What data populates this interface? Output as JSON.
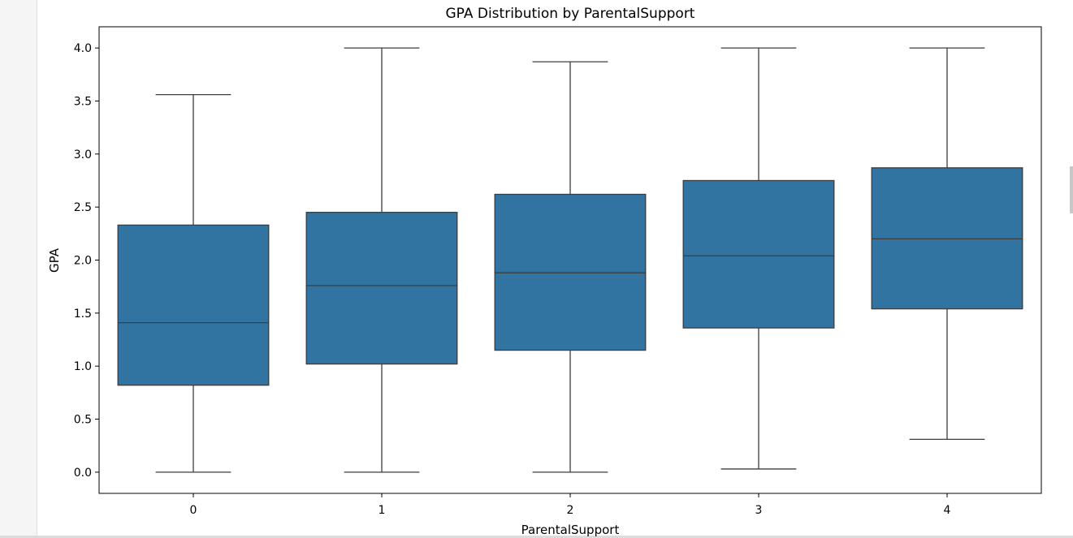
{
  "chart_data": {
    "type": "box",
    "title": "GPA Distribution by ParentalSupport",
    "xlabel": "ParentalSupport",
    "ylabel": "GPA",
    "ylim": [
      -0.2,
      4.2
    ],
    "yticks": [
      "0.0",
      "0.5",
      "1.0",
      "1.5",
      "2.0",
      "2.5",
      "3.0",
      "3.5",
      "4.0"
    ],
    "categories": [
      "0",
      "1",
      "2",
      "3",
      "4"
    ],
    "box_color": "#3274a1",
    "line_color": "#3d3d3d",
    "boxes": [
      {
        "category": "0",
        "whisker_low": 0.0,
        "q1": 0.82,
        "median": 1.41,
        "q3": 2.33,
        "whisker_high": 3.56
      },
      {
        "category": "1",
        "whisker_low": 0.0,
        "q1": 1.02,
        "median": 1.76,
        "q3": 2.45,
        "whisker_high": 4.0
      },
      {
        "category": "2",
        "whisker_low": 0.0,
        "q1": 1.15,
        "median": 1.88,
        "q3": 2.62,
        "whisker_high": 3.87
      },
      {
        "category": "3",
        "whisker_low": 0.03,
        "q1": 1.36,
        "median": 2.04,
        "q3": 2.75,
        "whisker_high": 4.0
      },
      {
        "category": "4",
        "whisker_low": 0.31,
        "q1": 1.54,
        "median": 2.2,
        "q3": 2.87,
        "whisker_high": 4.0
      }
    ]
  }
}
